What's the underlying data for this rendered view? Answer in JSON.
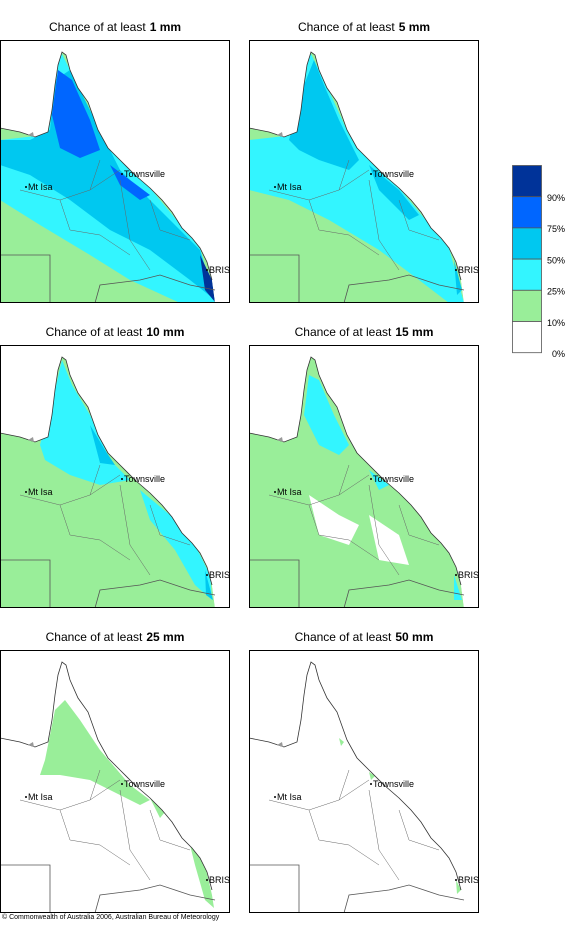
{
  "panels": [
    {
      "title": "Chance of at least",
      "amount": "1 mm"
    },
    {
      "title": "Chance of at least",
      "amount": "5 mm"
    },
    {
      "title": "Chance of at least",
      "amount": "10 mm"
    },
    {
      "title": "Chance of at least",
      "amount": "15 mm"
    },
    {
      "title": "Chance of at least",
      "amount": "25 mm"
    },
    {
      "title": "Chance of at least",
      "amount": "50 mm"
    }
  ],
  "places": [
    "Townsville",
    "Mt Isa",
    "BRIS"
  ],
  "legend": {
    "labels": [
      "90%",
      "75%",
      "50%",
      "25%",
      "10%",
      "0%"
    ]
  },
  "footer": "© Commonwealth of Australia 2006, Australian Bureau of Meteorology"
}
